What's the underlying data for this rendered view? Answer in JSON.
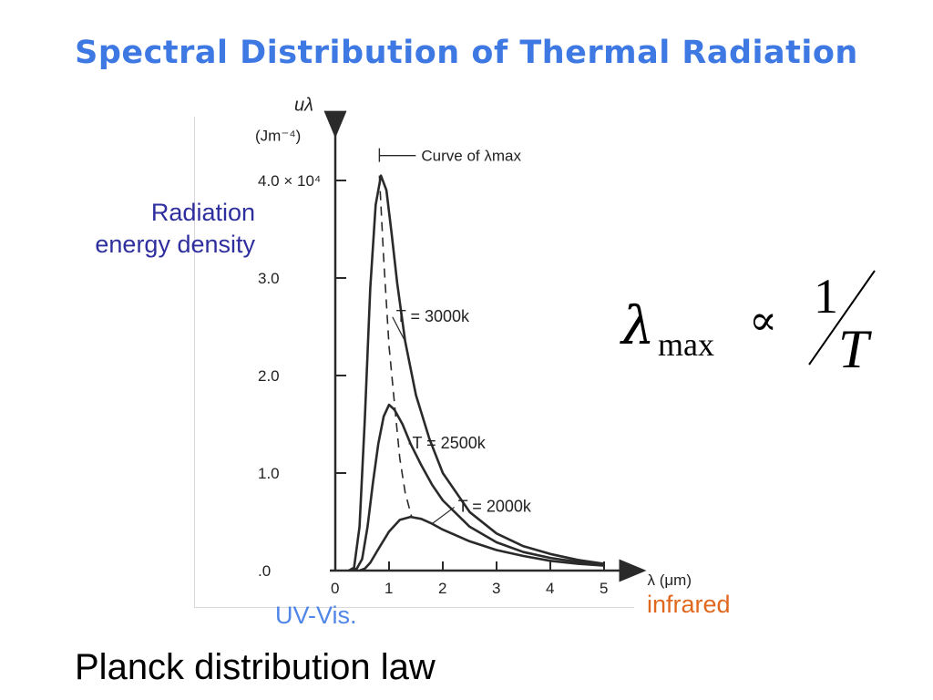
{
  "slide": {
    "title": "Spectral Distribution of Thermal Radiation",
    "caption": "Planck distribution law"
  },
  "annotations": {
    "energy_density_line1": "Radiation",
    "energy_density_line2": "energy density",
    "uv_vis": "UV-Vis.",
    "infrared": "infrared"
  },
  "formula": {
    "lambda": "λ",
    "subscript": "max",
    "proportional": "∝",
    "numerator": "1",
    "denominator": "T"
  },
  "colors": {
    "title": "#3d78e3",
    "energy_density": "#2e2e9e",
    "uv_vis": "#4f86e8",
    "infrared": "#e0681e",
    "curve": "#2a2a2a"
  },
  "chart_data": {
    "type": "line",
    "title": "",
    "xlabel": "λ (μm)",
    "ylabel": "uλ",
    "ylabel_unit": "(Jm⁻⁴)",
    "xlim": [
      0,
      5.5
    ],
    "ylim": [
      0,
      4.2
    ],
    "x_ticks": [
      0,
      1,
      2,
      3,
      4,
      5
    ],
    "x_tick_labels": [
      "0",
      "1",
      "2",
      "3",
      "4",
      "5"
    ],
    "y_ticks": [
      0,
      1,
      2,
      3,
      4
    ],
    "y_tick_labels": [
      ".0",
      "1.0",
      "2.0",
      "3.0",
      "4.0 × 10⁴"
    ],
    "grid": false,
    "series": [
      {
        "name": "T = 3000k",
        "label_at": [
          1.2,
          2.6
        ],
        "x": [
          0.25,
          0.35,
          0.45,
          0.55,
          0.65,
          0.75,
          0.85,
          0.95,
          1.05,
          1.15,
          1.3,
          1.5,
          1.75,
          2.0,
          2.5,
          3.0,
          3.5,
          4.0,
          4.5,
          5.0
        ],
        "y": [
          0.0,
          0.03,
          0.45,
          1.55,
          2.9,
          3.75,
          4.05,
          3.9,
          3.45,
          2.95,
          2.35,
          1.8,
          1.35,
          1.0,
          0.6,
          0.38,
          0.25,
          0.17,
          0.11,
          0.07
        ]
      },
      {
        "name": "T = 2500k",
        "label_at": [
          1.5,
          1.3
        ],
        "x": [
          0.3,
          0.4,
          0.5,
          0.6,
          0.7,
          0.8,
          0.9,
          1.0,
          1.1,
          1.25,
          1.4,
          1.6,
          1.8,
          2.0,
          2.5,
          3.0,
          3.5,
          4.0,
          4.5,
          5.0
        ],
        "y": [
          0.0,
          0.02,
          0.12,
          0.45,
          0.9,
          1.3,
          1.58,
          1.7,
          1.65,
          1.5,
          1.3,
          1.08,
          0.88,
          0.72,
          0.45,
          0.29,
          0.19,
          0.13,
          0.09,
          0.06
        ]
      },
      {
        "name": "T = 2000k",
        "label_at": [
          2.35,
          0.65
        ],
        "x": [
          0.45,
          0.55,
          0.65,
          0.8,
          1.0,
          1.2,
          1.4,
          1.6,
          1.8,
          2.0,
          2.5,
          3.0,
          3.5,
          4.0,
          4.5,
          5.0
        ],
        "y": [
          0.0,
          0.02,
          0.08,
          0.22,
          0.4,
          0.52,
          0.55,
          0.53,
          0.48,
          0.42,
          0.3,
          0.21,
          0.15,
          0.1,
          0.07,
          0.05
        ]
      }
    ],
    "annotation_curve": {
      "name": "Curve of λmax",
      "style": "dashed",
      "x": [
        0.82,
        0.9,
        1.0,
        1.1,
        1.2,
        1.3,
        1.42
      ],
      "y": [
        4.05,
        3.2,
        2.3,
        1.72,
        1.15,
        0.8,
        0.55
      ]
    }
  }
}
